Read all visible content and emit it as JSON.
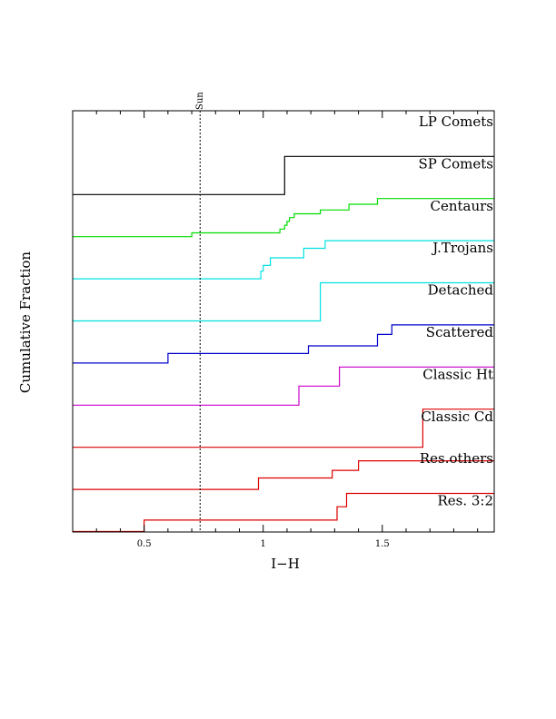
{
  "chart_data": {
    "type": "line",
    "xlabel": "I−H",
    "ylabel": "Cumulative Fraction",
    "xlim": [
      0.2,
      1.97
    ],
    "x_ticks": [
      "0.5",
      "1",
      "1.5"
    ],
    "x_tick_values": [
      0.5,
      1.0,
      1.5
    ],
    "reference_line": {
      "label": "Sun",
      "x": 0.735,
      "style": "dotted"
    },
    "grid": false,
    "colors": {
      "black": "#000000",
      "green": "#00dd00",
      "cyan": "#00e0e0",
      "blue": "#0000cc",
      "magenta": "#cc00cc",
      "red": "#dd0000"
    },
    "series": [
      {
        "name": "LP Comets",
        "color": "#000000",
        "steps": []
      },
      {
        "name": "SP Comets",
        "color": "#000000",
        "steps": [
          [
            0.2,
            0.0
          ],
          [
            1.09,
            1.0
          ],
          [
            1.97,
            1.0
          ]
        ]
      },
      {
        "name": "Centaurs",
        "color": "#00dd00",
        "steps": [
          [
            0.2,
            0.0
          ],
          [
            0.7,
            0.1
          ],
          [
            1.07,
            0.2
          ],
          [
            1.09,
            0.3
          ],
          [
            1.1,
            0.4
          ],
          [
            1.11,
            0.5
          ],
          [
            1.13,
            0.6
          ],
          [
            1.24,
            0.7
          ],
          [
            1.36,
            0.85
          ],
          [
            1.48,
            1.0
          ],
          [
            1.97,
            1.0
          ]
        ]
      },
      {
        "name": "J.Trojans",
        "color": "#00e0e0",
        "steps": [
          [
            0.2,
            0.0
          ],
          [
            0.99,
            0.2
          ],
          [
            1.0,
            0.35
          ],
          [
            1.03,
            0.55
          ],
          [
            1.17,
            0.8
          ],
          [
            1.26,
            1.0
          ],
          [
            1.97,
            1.0
          ]
        ]
      },
      {
        "name": "Detached",
        "color": "#00e0e0",
        "steps": [
          [
            0.2,
            0.0
          ],
          [
            1.24,
            1.0
          ],
          [
            1.97,
            1.0
          ]
        ]
      },
      {
        "name": "Scattered",
        "color": "#0000cc",
        "steps": [
          [
            0.2,
            0.0
          ],
          [
            0.6,
            0.25
          ],
          [
            1.19,
            0.45
          ],
          [
            1.48,
            0.75
          ],
          [
            1.54,
            1.0
          ],
          [
            1.97,
            1.0
          ]
        ]
      },
      {
        "name": "Classic Ht",
        "color": "#cc00cc",
        "steps": [
          [
            0.2,
            0.0
          ],
          [
            1.15,
            0.5
          ],
          [
            1.32,
            1.0
          ],
          [
            1.97,
            1.0
          ]
        ]
      },
      {
        "name": "Classic Cd",
        "color": "#dd0000",
        "steps": [
          [
            0.2,
            0.0
          ],
          [
            1.67,
            1.0
          ],
          [
            1.97,
            1.0
          ]
        ]
      },
      {
        "name": "Res.others",
        "color": "#dd0000",
        "steps": [
          [
            0.2,
            0.0
          ],
          [
            0.98,
            0.3
          ],
          [
            1.29,
            0.5
          ],
          [
            1.4,
            0.75
          ],
          [
            1.97,
            0.75
          ]
        ]
      },
      {
        "name": "Res. 3:2",
        "color": "#dd0000",
        "steps": [
          [
            0.2,
            0.0
          ],
          [
            0.5,
            0.3
          ],
          [
            1.31,
            0.65
          ],
          [
            1.35,
            1.0
          ],
          [
            1.97,
            1.0
          ]
        ]
      }
    ]
  }
}
